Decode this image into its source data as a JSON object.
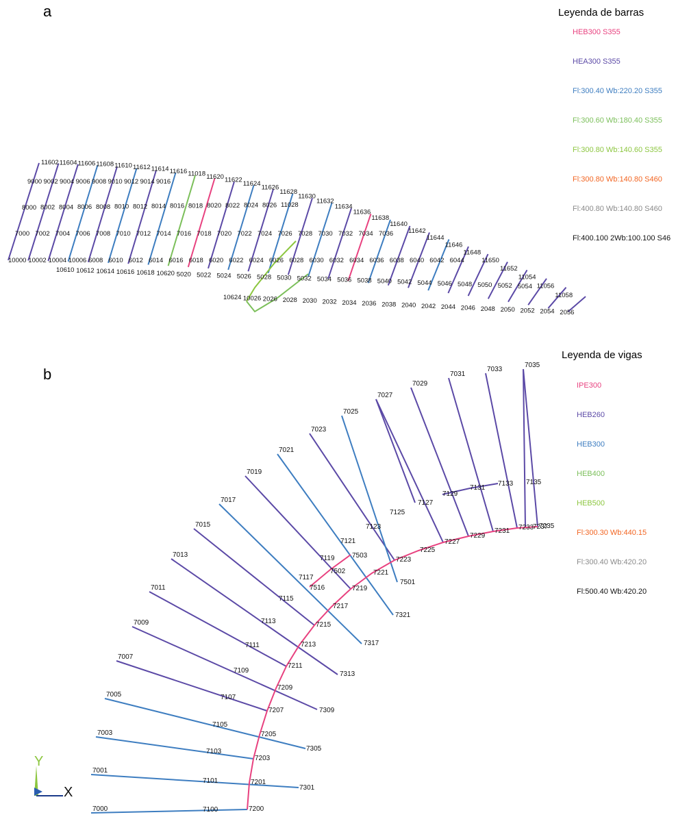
{
  "panel_a": {
    "letter": "a",
    "legend_title": "Leyenda de barras",
    "legend": [
      {
        "label": "HEB300 S355",
        "color": "#e8417f"
      },
      {
        "label": "HEA300 S355",
        "color": "#5b49a6"
      },
      {
        "label": "Fl:300.40 Wb:220.20 S355",
        "color": "#3d7dc0"
      },
      {
        "label": "Fl:300.60 Wb:180.40 S355",
        "color": "#7bbf5a"
      },
      {
        "label": "Fl:300.80 Wb:140.60 S355",
        "color": "#8cc63f"
      },
      {
        "label": "Fl:300.80 Wb:140.80 S460",
        "color": "#f26522"
      },
      {
        "label": "Fl:400.80 Wb:140.80 S460",
        "color": "#8a8a8a"
      },
      {
        "label": "Fl:400.100 2Wb:100.100 S46",
        "color": "#111111"
      }
    ],
    "row1_labels": [
      "11602",
      "11604",
      "11606",
      "11608",
      "11610",
      "11612",
      "11614",
      "11616",
      "11018",
      "11620",
      "11622",
      "11624",
      "11626",
      "11628",
      "11630",
      "11632",
      "11634",
      "11636",
      "11638",
      "11640",
      "11642",
      "11644",
      "11646",
      "11648",
      "11650",
      "11652",
      "11054",
      "11056",
      "11058"
    ],
    "row2_labels": [
      "9000",
      "9002",
      "9004",
      "9006",
      "9008",
      "9010",
      "9012",
      "9014",
      "9016"
    ],
    "row3_labels": [
      "8000",
      "8002",
      "8004",
      "8006",
      "8008",
      "8010",
      "8012",
      "8014",
      "8016",
      "8018",
      "8020",
      "8022",
      "8024",
      "8026",
      "11028"
    ],
    "row4_labels": [
      "7000",
      "7002",
      "7004",
      "7006",
      "7008",
      "7010",
      "7012",
      "7014",
      "7016",
      "7018",
      "7020",
      "7022",
      "7024",
      "7026",
      "7028",
      "7030",
      "7032",
      "7034",
      "7036"
    ],
    "row5_labels": [
      "10000",
      "10002",
      "10004",
      "10006",
      "6008",
      "6010",
      "6012",
      "6014",
      "6016",
      "6018",
      "6020",
      "6022",
      "6024",
      "6026",
      "6028",
      "6030",
      "6032",
      "6034",
      "6036",
      "6038",
      "6040",
      "6042",
      "6044"
    ],
    "row6_labels": [
      "10610",
      "10612",
      "10614",
      "10616",
      "10618",
      "10620",
      "5020",
      "5022",
      "5024",
      "5026",
      "5028",
      "5030",
      "5032",
      "5034",
      "5036",
      "5038",
      "5040",
      "5042",
      "5044",
      "5046",
      "5048",
      "5050",
      "5052",
      "5054"
    ],
    "row7_labels": [
      "10624",
      "10026",
      "2026",
      "2028",
      "2030",
      "2032",
      "2034",
      "2036",
      "2038",
      "2040",
      "2042",
      "2044",
      "2046",
      "2048",
      "2050",
      "2052",
      "2054",
      "2056"
    ]
  },
  "panel_b": {
    "letter": "b",
    "legend_title": "Leyenda de vigas",
    "legend": [
      {
        "label": "IPE300",
        "color": "#e8417f"
      },
      {
        "label": "HEB260",
        "color": "#5b49a6"
      },
      {
        "label": "HEB300",
        "color": "#3d7dc0"
      },
      {
        "label": "HEB400",
        "color": "#7bbf5a"
      },
      {
        "label": "HEB500",
        "color": "#8cc63f"
      },
      {
        "label": "Fl:300.30 Wb:440.15",
        "color": "#f26522"
      },
      {
        "label": "Fl:300.40 Wb:420.20",
        "color": "#8a8a8a"
      },
      {
        "label": "Fl:500.40 Wb:420.20",
        "color": "#111111"
      }
    ],
    "outer_labels": [
      "7000",
      "7001",
      "7003",
      "7005",
      "7007",
      "7009",
      "7011",
      "7013",
      "7015",
      "7017",
      "7019",
      "7021",
      "7023",
      "7025",
      "7027",
      "7029",
      "7031",
      "7033",
      "7035"
    ],
    "mid_labels": [
      "7100",
      "7101",
      "7103",
      "7105",
      "7107",
      "7109",
      "7111",
      "7113",
      "7115",
      "7117",
      "7119",
      "7121",
      "7123",
      "7125",
      "7127",
      "7129",
      "7131",
      "7133",
      "7135"
    ],
    "curve_labels": [
      "7200",
      "7201",
      "7203",
      "7205",
      "7207",
      "7209",
      "7211",
      "7213",
      "7215",
      "7217",
      "7219",
      "7221",
      "7223",
      "7225",
      "7227",
      "7229",
      "7231",
      "7233",
      "7235"
    ],
    "inner_labels": [
      "7301",
      "7305",
      "7309",
      "7313",
      "7317",
      "7321",
      "7501",
      "7502",
      "7503",
      "7516"
    ],
    "extra_label": "7237"
  },
  "axes": {
    "y_label": "Y",
    "x_label": "X"
  }
}
